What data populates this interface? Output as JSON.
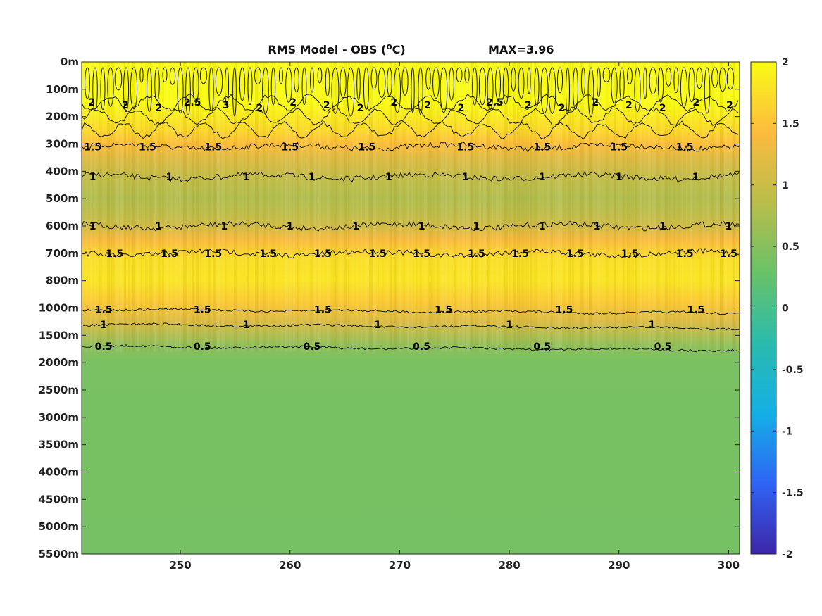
{
  "chart_data": {
    "type": "heatmap",
    "title": "RMS Model - OBS (°C)",
    "title_parts": {
      "text_before": "RMS Model - OBS (",
      "superscript": "o",
      "text_after": "C)"
    },
    "max_annotation": "MAX=3.96",
    "x": {
      "range": [
        241,
        301
      ],
      "ticks": [
        250,
        260,
        270,
        280,
        290,
        300
      ]
    },
    "y": {
      "tick_labels": [
        "0m",
        "100m",
        "200m",
        "300m",
        "400m",
        "500m",
        "600m",
        "700m",
        "800m",
        "1000m",
        "1500m",
        "2000m",
        "2500m",
        "3000m",
        "3500m",
        "4000m",
        "4500m",
        "5000m",
        "5500m"
      ],
      "direction": "down"
    },
    "colorbar": {
      "range": [
        -2,
        2
      ],
      "ticks": [
        "2",
        "1.5",
        "1",
        "0.5",
        "0",
        "-0.5",
        "-1",
        "-1.5",
        "-2"
      ],
      "colormap": "parula",
      "stops": [
        "#3e26a8",
        "#2f64f5",
        "#13b0e5",
        "#29bbad",
        "#69c268",
        "#b9bd4b",
        "#fcbb3d",
        "#f9fb15"
      ]
    },
    "field_profile": [
      {
        "depth_index": 0.0,
        "value": 2.4
      },
      {
        "depth_index": 1.5,
        "value": 2.1
      },
      {
        "depth_index": 2.5,
        "value": 1.7
      },
      {
        "depth_index": 3.0,
        "value": 1.45
      },
      {
        "depth_index": 3.6,
        "value": 1.15
      },
      {
        "depth_index": 4.2,
        "value": 0.95
      },
      {
        "depth_index": 5.0,
        "value": 0.8
      },
      {
        "depth_index": 5.5,
        "value": 0.9
      },
      {
        "depth_index": 6.0,
        "value": 1.05
      },
      {
        "depth_index": 6.5,
        "value": 1.4
      },
      {
        "depth_index": 7.2,
        "value": 1.75
      },
      {
        "depth_index": 8.0,
        "value": 1.8
      },
      {
        "depth_index": 8.8,
        "value": 1.55
      },
      {
        "depth_index": 9.5,
        "value": 1.15
      },
      {
        "depth_index": 10.4,
        "value": 0.55
      },
      {
        "depth_index": 11.0,
        "value": 0.4
      },
      {
        "depth_index": 18.0,
        "value": 0.38
      }
    ],
    "contours": [
      {
        "level": "1.5",
        "depth_index": 3.1,
        "label_x": [
          242,
          247,
          253,
          260,
          267,
          276,
          283,
          290,
          296
        ]
      },
      {
        "level": "1",
        "depth_index": 4.2,
        "label_x": [
          242,
          249,
          256,
          262,
          269,
          276,
          283,
          290,
          297
        ]
      },
      {
        "level": "1",
        "depth_index": 6.0,
        "label_x": [
          242,
          248,
          254,
          260,
          266,
          272,
          277,
          283,
          288,
          294,
          300
        ]
      },
      {
        "level": "1.5",
        "depth_index": 7.0,
        "label_x": [
          244,
          249,
          253,
          258,
          263,
          268,
          272,
          277,
          281,
          286,
          291,
          296,
          300
        ]
      },
      {
        "level": "1.5",
        "depth_index": 9.05,
        "label_x": [
          243,
          252,
          263,
          274,
          285,
          297
        ]
      },
      {
        "level": "1",
        "depth_index": 9.6,
        "label_x": [
          243,
          256,
          268,
          280,
          293
        ]
      },
      {
        "level": "0.5",
        "depth_index": 10.4,
        "label_x": [
          243,
          252,
          262,
          272,
          283,
          294
        ]
      }
    ],
    "top_labels": [
      "2",
      "2",
      "2",
      "2.5",
      "3",
      "2",
      "2",
      "2",
      "2",
      "2",
      "2",
      "2",
      "2.5",
      "2",
      "2",
      "2",
      "2",
      "2",
      "2",
      "2"
    ]
  }
}
